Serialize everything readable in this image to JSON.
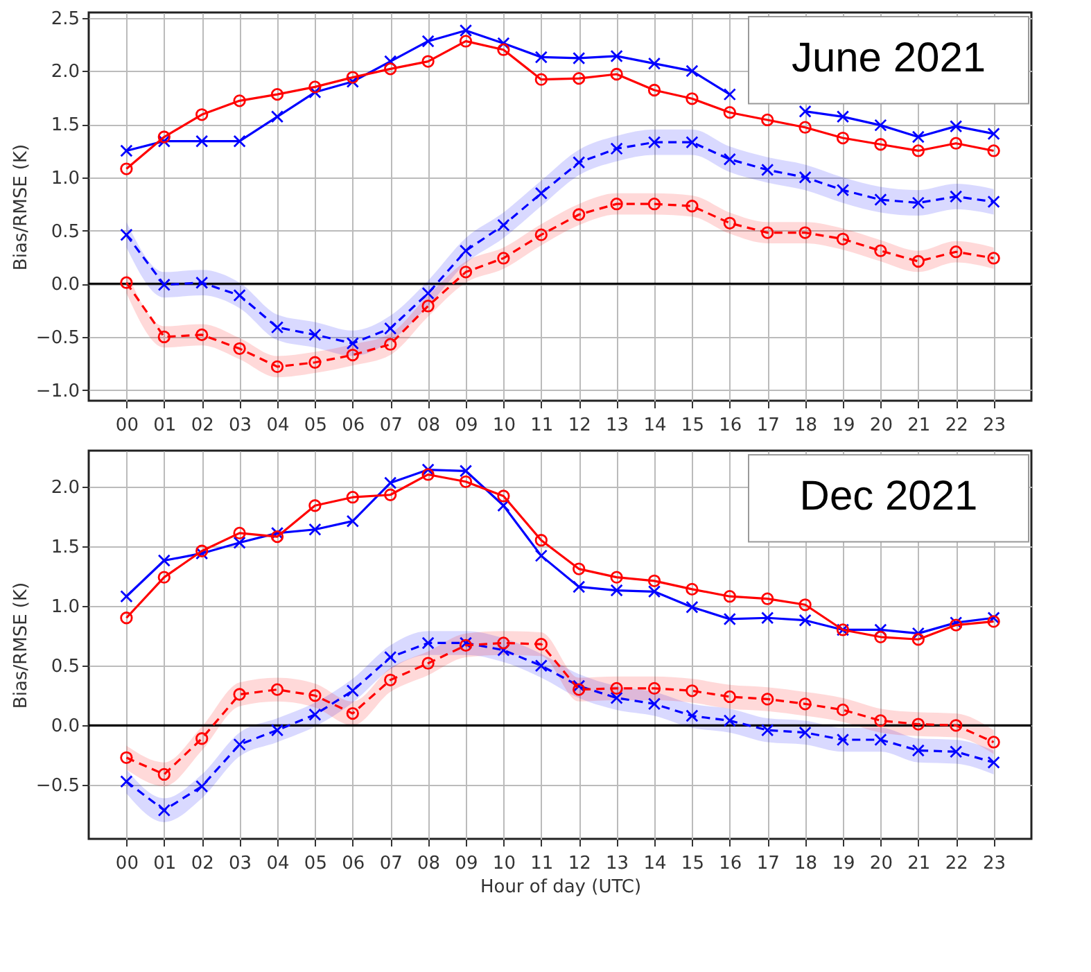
{
  "chart_data": [
    {
      "type": "line",
      "annotations": [
        "June 2021"
      ],
      "ylabel": "Bias/RMSE (K)",
      "categories": [
        "00",
        "01",
        "02",
        "03",
        "04",
        "05",
        "06",
        "07",
        "08",
        "09",
        "10",
        "11",
        "12",
        "13",
        "14",
        "15",
        "16",
        "17",
        "18",
        "19",
        "20",
        "21",
        "22",
        "23"
      ],
      "ylim": [
        -1.1,
        2.55
      ],
      "yticks": [
        {
          "value": -1,
          "label": "−1.0"
        },
        {
          "value": -0.5,
          "label": "−0.5"
        },
        {
          "value": 0,
          "label": "0.0"
        },
        {
          "value": 0.5,
          "label": "0.5"
        },
        {
          "value": 1,
          "label": "1.0"
        },
        {
          "value": 1.5,
          "label": "1.5"
        },
        {
          "value": 2,
          "label": "2.0"
        },
        {
          "value": 2.5,
          "label": "2.5"
        }
      ],
      "grid": true,
      "ref_lines": [
        {
          "axis": "y",
          "value": 0,
          "color": "#000000"
        }
      ],
      "series": [
        {
          "color": "#0000ff",
          "marker": "cross",
          "line_style": "solid",
          "values": [
            1.25,
            1.34,
            1.34,
            1.34,
            1.57,
            1.8,
            1.9,
            2.09,
            2.28,
            2.38,
            2.26,
            2.13,
            2.12,
            2.14,
            2.07,
            2.0,
            1.78,
            null,
            1.62,
            1.57,
            1.49,
            1.38,
            1.48,
            1.41
          ]
        },
        {
          "color": "#ff0000",
          "marker": "circle",
          "line_style": "solid",
          "values": [
            1.08,
            1.38,
            1.59,
            1.72,
            1.78,
            1.85,
            1.94,
            2.02,
            2.09,
            2.28,
            2.2,
            1.92,
            1.93,
            1.97,
            1.82,
            1.74,
            1.61,
            1.54,
            1.47,
            1.37,
            1.31,
            1.25,
            1.32,
            1.25
          ]
        },
        {
          "color": "#0000ff",
          "marker": "cross",
          "line_style": "dashed",
          "values": [
            0.46,
            -0.01,
            0.01,
            -0.11,
            -0.41,
            -0.48,
            -0.56,
            -0.42,
            -0.09,
            0.31,
            0.55,
            0.85,
            1.14,
            1.27,
            1.33,
            1.33,
            1.17,
            1.07,
            1.0,
            0.88,
            0.79,
            0.76,
            0.82,
            0.77
          ],
          "lower": [
            0.34,
            -0.13,
            -0.11,
            -0.23,
            -0.53,
            -0.6,
            -0.68,
            -0.54,
            -0.21,
            0.19,
            0.43,
            0.73,
            1.02,
            1.15,
            1.21,
            1.21,
            1.05,
            0.95,
            0.88,
            0.76,
            0.67,
            0.64,
            0.7,
            0.65
          ],
          "upper": [
            0.58,
            0.11,
            0.13,
            0.01,
            -0.29,
            -0.36,
            -0.44,
            -0.3,
            0.03,
            0.43,
            0.67,
            0.97,
            1.26,
            1.39,
            1.45,
            1.45,
            1.29,
            1.19,
            1.12,
            1.0,
            0.91,
            0.88,
            0.94,
            0.89
          ]
        },
        {
          "color": "#ff0000",
          "marker": "circle",
          "line_style": "dashed",
          "values": [
            0.01,
            -0.5,
            -0.48,
            -0.61,
            -0.78,
            -0.74,
            -0.67,
            -0.57,
            -0.21,
            0.11,
            0.24,
            0.46,
            0.65,
            0.75,
            0.75,
            0.73,
            0.57,
            0.48,
            0.48,
            0.42,
            0.31,
            0.21,
            0.3,
            0.24
          ],
          "lower": [
            -0.09,
            -0.6,
            -0.58,
            -0.71,
            -0.88,
            -0.84,
            -0.77,
            -0.67,
            -0.31,
            0.01,
            0.14,
            0.36,
            0.55,
            0.65,
            0.65,
            0.63,
            0.47,
            0.38,
            0.38,
            0.32,
            0.21,
            0.11,
            0.2,
            0.14
          ],
          "upper": [
            0.11,
            -0.4,
            -0.38,
            -0.51,
            -0.68,
            -0.64,
            -0.57,
            -0.47,
            -0.11,
            0.21,
            0.34,
            0.56,
            0.75,
            0.85,
            0.85,
            0.83,
            0.67,
            0.58,
            0.58,
            0.52,
            0.41,
            0.31,
            0.4,
            0.34
          ]
        }
      ]
    },
    {
      "type": "line",
      "annotations": [
        "Dec 2021"
      ],
      "xlabel": "Hour of day (UTC)",
      "ylabel": "Bias/RMSE (K)",
      "categories": [
        "00",
        "01",
        "02",
        "03",
        "04",
        "05",
        "06",
        "07",
        "08",
        "09",
        "10",
        "11",
        "12",
        "13",
        "14",
        "15",
        "16",
        "17",
        "18",
        "19",
        "20",
        "21",
        "22",
        "23"
      ],
      "ylim": [
        -0.95,
        2.3
      ],
      "yticks": [
        {
          "value": -0.5,
          "label": "−0.5"
        },
        {
          "value": 0,
          "label": "0.0"
        },
        {
          "value": 0.5,
          "label": "0.5"
        },
        {
          "value": 1,
          "label": "1.0"
        },
        {
          "value": 1.5,
          "label": "1.5"
        },
        {
          "value": 2,
          "label": "2.0"
        }
      ],
      "grid": true,
      "ref_lines": [
        {
          "axis": "y",
          "value": 0,
          "color": "#000000"
        }
      ],
      "series": [
        {
          "color": "#0000ff",
          "marker": "cross",
          "line_style": "solid",
          "values": [
            1.08,
            1.38,
            1.44,
            1.53,
            1.61,
            1.64,
            1.71,
            2.03,
            2.14,
            2.13,
            1.84,
            1.42,
            1.16,
            1.13,
            1.12,
            0.99,
            0.89,
            0.9,
            0.88,
            0.8,
            0.8,
            0.77,
            0.86,
            0.9
          ]
        },
        {
          "color": "#ff0000",
          "marker": "circle",
          "line_style": "solid",
          "values": [
            0.9,
            1.24,
            1.46,
            1.61,
            1.58,
            1.84,
            1.91,
            1.93,
            2.1,
            2.04,
            1.92,
            1.55,
            1.31,
            1.24,
            1.21,
            1.14,
            1.08,
            1.06,
            1.01,
            0.8,
            0.74,
            0.72,
            0.84,
            0.87
          ]
        },
        {
          "color": "#0000ff",
          "marker": "cross",
          "line_style": "dashed",
          "values": [
            -0.47,
            -0.71,
            -0.51,
            -0.16,
            -0.04,
            0.09,
            0.29,
            0.57,
            0.69,
            0.69,
            0.63,
            0.5,
            0.33,
            0.23,
            0.18,
            0.08,
            0.04,
            -0.04,
            -0.06,
            -0.12,
            -0.12,
            -0.21,
            -0.22,
            -0.31
          ],
          "lower": [
            -0.57,
            -0.81,
            -0.61,
            -0.26,
            -0.14,
            -0.01,
            0.19,
            0.47,
            0.59,
            0.59,
            0.53,
            0.4,
            0.23,
            0.13,
            0.08,
            -0.02,
            -0.06,
            -0.14,
            -0.16,
            -0.22,
            -0.22,
            -0.31,
            -0.32,
            -0.41
          ],
          "upper": [
            -0.37,
            -0.61,
            -0.41,
            -0.06,
            0.06,
            0.19,
            0.39,
            0.67,
            0.79,
            0.79,
            0.73,
            0.6,
            0.43,
            0.33,
            0.28,
            0.18,
            0.14,
            0.06,
            0.04,
            -0.02,
            -0.02,
            -0.11,
            -0.12,
            -0.21
          ]
        },
        {
          "color": "#ff0000",
          "marker": "circle",
          "line_style": "dashed",
          "values": [
            -0.27,
            -0.41,
            -0.11,
            0.26,
            0.3,
            0.25,
            0.1,
            0.38,
            0.52,
            0.67,
            0.69,
            0.68,
            0.3,
            0.31,
            0.31,
            0.29,
            0.24,
            0.22,
            0.18,
            0.13,
            0.04,
            0.01,
            0.0,
            -0.14
          ],
          "lower": [
            -0.37,
            -0.51,
            -0.21,
            0.16,
            0.2,
            0.15,
            0.0,
            0.28,
            0.42,
            0.57,
            0.59,
            0.58,
            0.2,
            0.21,
            0.21,
            0.19,
            0.14,
            0.12,
            0.08,
            0.03,
            -0.06,
            -0.09,
            -0.1,
            -0.24
          ],
          "upper": [
            -0.17,
            -0.31,
            -0.01,
            0.36,
            0.4,
            0.35,
            0.2,
            0.48,
            0.62,
            0.77,
            0.79,
            0.78,
            0.4,
            0.41,
            0.41,
            0.39,
            0.34,
            0.32,
            0.28,
            0.23,
            0.14,
            0.11,
            0.1,
            -0.04
          ]
        }
      ]
    }
  ]
}
